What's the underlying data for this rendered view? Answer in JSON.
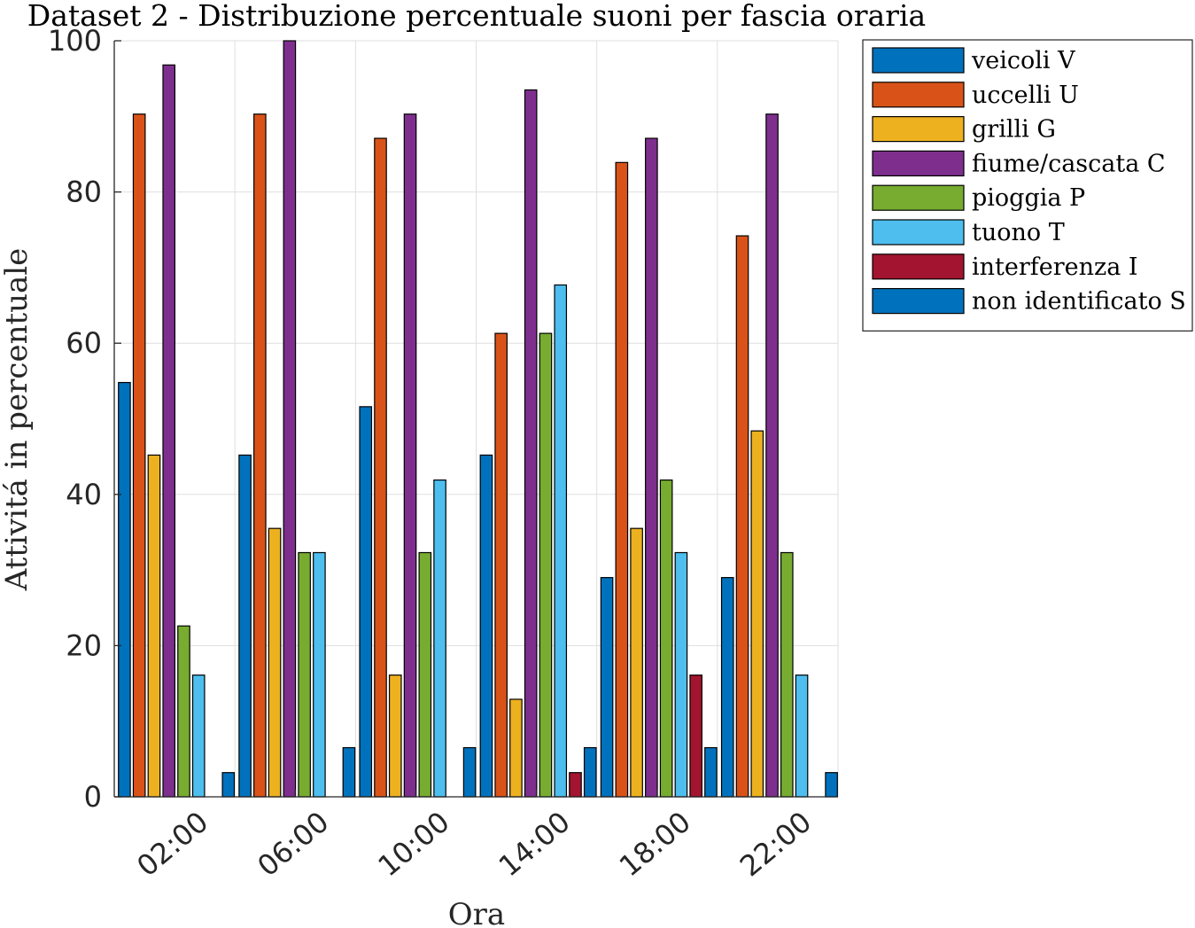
{
  "chart_data": {
    "type": "bar",
    "title": "Dataset 2 - Distribuzione percentuale suoni per fascia oraria",
    "xlabel": "Ora",
    "ylabel": "Attivitá in percentuale",
    "ylim": [
      0,
      100
    ],
    "yticks": [
      0,
      20,
      40,
      60,
      80,
      100
    ],
    "grid": true,
    "legend_position": "outside-top-right",
    "categories": [
      "02:00",
      "06:00",
      "10:00",
      "14:00",
      "18:00",
      "22:00"
    ],
    "series": [
      {
        "name": "veicoli V",
        "color": "#0072BD",
        "values": [
          54.8,
          45.2,
          51.6,
          45.2,
          29.0,
          29.0
        ]
      },
      {
        "name": "uccelli U",
        "color": "#D95319",
        "values": [
          90.3,
          90.3,
          87.1,
          61.3,
          83.9,
          74.2
        ]
      },
      {
        "name": "grilli G",
        "color": "#EDB120",
        "values": [
          45.2,
          35.5,
          16.1,
          12.9,
          35.5,
          48.4
        ]
      },
      {
        "name": "fiume/cascata C",
        "color": "#7E2F8E",
        "values": [
          96.8,
          100.0,
          90.3,
          93.5,
          87.1,
          90.3
        ]
      },
      {
        "name": "pioggia P",
        "color": "#77AC30",
        "values": [
          22.6,
          32.3,
          32.3,
          61.3,
          41.9,
          32.3
        ]
      },
      {
        "name": "tuono T",
        "color": "#4DBEEE",
        "values": [
          16.1,
          32.3,
          41.9,
          67.7,
          32.3,
          16.1
        ]
      },
      {
        "name": "interferenza I",
        "color": "#A2142F",
        "values": [
          0,
          0,
          0,
          3.2,
          16.1,
          0
        ]
      },
      {
        "name": "non identificato S",
        "color": "#0072BD",
        "values": [
          3.2,
          6.5,
          6.5,
          6.5,
          6.5,
          3.2
        ]
      }
    ]
  }
}
